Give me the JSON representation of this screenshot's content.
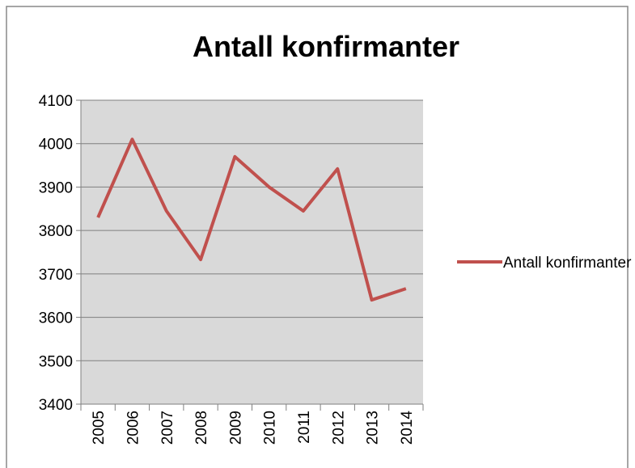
{
  "chart_data": {
    "type": "line",
    "title": "Antall konfirmanter",
    "categories": [
      "2005",
      "2006",
      "2007",
      "2008",
      "2009",
      "2010",
      "2011",
      "2012",
      "2013",
      "2014"
    ],
    "series": [
      {
        "name": "Antall konfirmanter",
        "color": "#c0504d",
        "values": [
          3830,
          4010,
          3845,
          3733,
          3970,
          3900,
          3845,
          3942,
          3640,
          3666
        ]
      }
    ],
    "ylim": [
      3400,
      4100
    ],
    "yticks": [
      3400,
      3500,
      3600,
      3700,
      3800,
      3900,
      4000,
      4100
    ],
    "grid": true,
    "legend": "right"
  }
}
